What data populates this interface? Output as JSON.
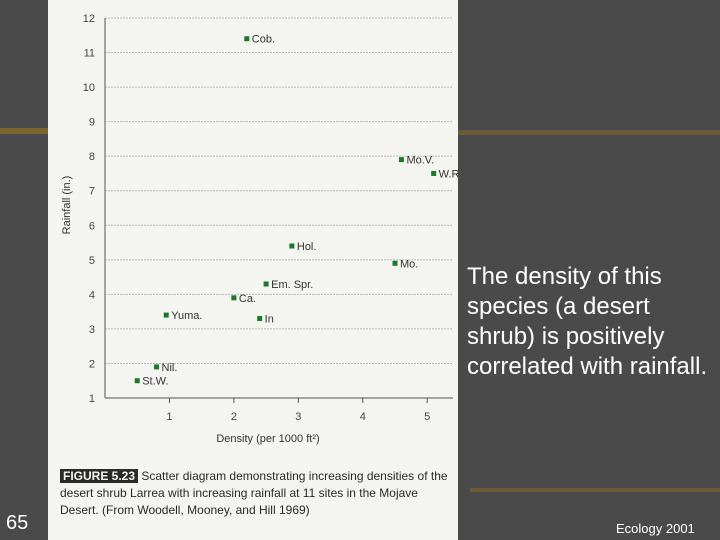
{
  "chart_data": {
    "type": "scatter",
    "xlabel": "Density (per 1000 ft²)",
    "ylabel": "Rainfall (in.)",
    "xlim": [
      0,
      5.4
    ],
    "ylim": [
      1,
      12
    ],
    "xticks": [
      1,
      2,
      3,
      4,
      5
    ],
    "yticks": [
      1,
      2,
      3,
      4,
      5,
      6,
      7,
      8,
      9,
      10,
      11,
      12
    ],
    "grid": "horizontal",
    "marker_color": "#1a7a2a",
    "points": [
      {
        "label": "Cob.",
        "x": 2.2,
        "y": 11.4
      },
      {
        "label": "Mo.V.",
        "x": 4.6,
        "y": 7.9
      },
      {
        "label": "W.R.",
        "x": 5.1,
        "y": 7.5
      },
      {
        "label": "Hol.",
        "x": 2.9,
        "y": 5.4
      },
      {
        "label": "Mo.",
        "x": 4.5,
        "y": 4.9
      },
      {
        "label": "Em. Spr.",
        "x": 2.5,
        "y": 4.3
      },
      {
        "label": "Ca.",
        "x": 2.0,
        "y": 3.9
      },
      {
        "label": "Yuma.",
        "x": 0.95,
        "y": 3.4
      },
      {
        "label": "In",
        "x": 2.4,
        "y": 3.3
      },
      {
        "label": "Nil.",
        "x": 0.8,
        "y": 1.9
      },
      {
        "label": "St.W.",
        "x": 0.5,
        "y": 1.5
      }
    ]
  },
  "caption": {
    "figure_label": "FIGURE 5.23",
    "text": "Scatter diagram demonstrating increasing densities of the desert shrub Larrea with increasing rainfall at 11 sites in the Mojave Desert. (From Woodell, Mooney, and Hill 1969)"
  },
  "side_text": "The density of this species (a desert shrub) is positively correlated with rainfall.",
  "slide_number": "65",
  "footer": "Ecology 2001"
}
